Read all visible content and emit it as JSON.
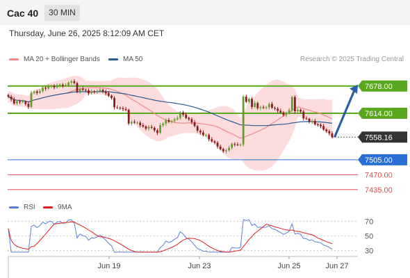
{
  "header": {
    "title": "Cac 40",
    "timeframe": "30 MIN"
  },
  "datetime": "Thursday, June 26, 2025 8:12:09 AM CET",
  "legend": {
    "ma20": {
      "label": "MA 20 + Bollinger Bands",
      "color": "#f08a8a"
    },
    "ma50": {
      "label": "MA 50",
      "color": "#2b5a97"
    },
    "rsi": {
      "label": "RSI",
      "color": "#5b7fd6"
    },
    "ma9": {
      "label": "9MA",
      "color": "#e02020"
    }
  },
  "credit": "Research © 2025 Trading Central",
  "chart_data": {
    "type": "candlestick",
    "ylim": [
      7420,
      7720
    ],
    "x_ticks": [
      "Jun 19",
      "Jun 23",
      "Jun 25",
      "Jun 27"
    ],
    "levels": [
      {
        "value": 7678.0,
        "label": "7678.00",
        "kind": "resistance",
        "color": "#5aa81e"
      },
      {
        "value": 7614.0,
        "label": "7614.00",
        "kind": "resistance",
        "color": "#5aa81e"
      },
      {
        "value": 7558.16,
        "label": "7558.16",
        "kind": "last",
        "color": "#333333"
      },
      {
        "value": 7505.0,
        "label": "7505.00",
        "kind": "pivot",
        "color": "#2a6fd6"
      },
      {
        "value": 7470.0,
        "label": "7470.00",
        "kind": "support",
        "color": "#e05050"
      },
      {
        "value": 7435.0,
        "label": "7435.00",
        "kind": "support",
        "color": "#e05050"
      }
    ],
    "close": [
      7653,
      7647,
      7637,
      7642,
      7641,
      7641,
      7636,
      7629,
      7662,
      7665,
      7662,
      7666,
      7674,
      7672,
      7677,
      7678,
      7675,
      7679,
      7681,
      7679,
      7680,
      7686,
      7689,
      7685,
      7665,
      7672,
      7669,
      7668,
      7661,
      7665,
      7664,
      7666,
      7669,
      7665,
      7661,
      7655,
      7650,
      7628,
      7627,
      7626,
      7624,
      7622,
      7590,
      7594,
      7592,
      7592,
      7586,
      7583,
      7578,
      7582,
      7580,
      7574,
      7568,
      7586,
      7590,
      7598,
      7594,
      7596,
      7600,
      7603,
      7616,
      7611,
      7603,
      7600,
      7593,
      7584,
      7573,
      7569,
      7563,
      7563,
      7553,
      7548,
      7545,
      7536,
      7530,
      7525,
      7527,
      7533,
      7542,
      7541,
      7540,
      7541,
      7653,
      7641,
      7648,
      7629,
      7638,
      7626,
      7628,
      7627,
      7628,
      7636,
      7627,
      7625,
      7620,
      7616,
      7610,
      7614,
      7621,
      7652,
      7619,
      7622,
      7618,
      7602,
      7601,
      7594,
      7596,
      7588,
      7587,
      7584,
      7576,
      7572,
      7567,
      7558
    ],
    "rsi": {
      "ylim": [
        25,
        75
      ],
      "ticks": [
        70,
        50,
        30
      ]
    }
  }
}
